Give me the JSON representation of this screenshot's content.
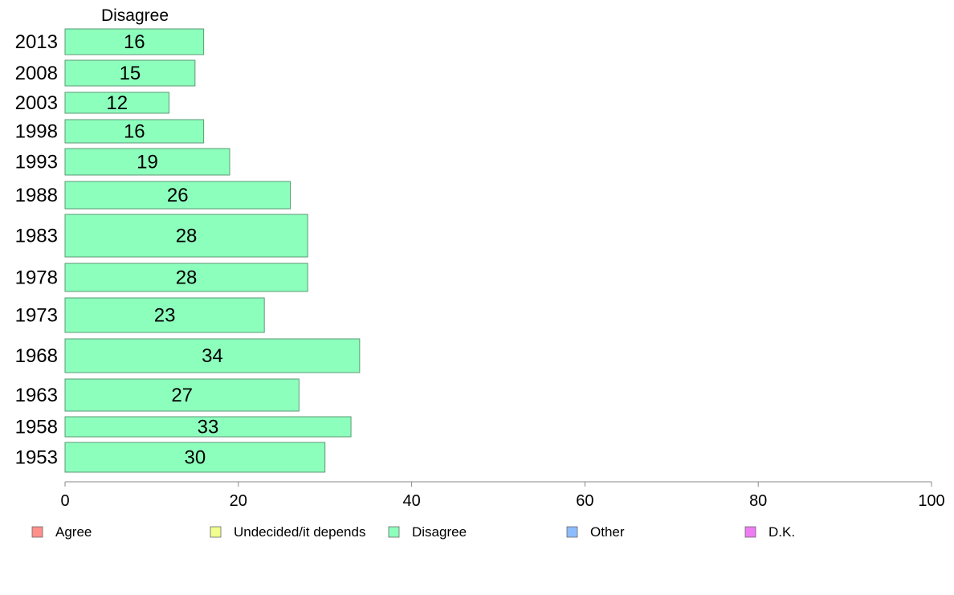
{
  "chart_data": {
    "type": "bar",
    "orientation": "horizontal",
    "title": "Disagree",
    "categories": [
      "2013",
      "2008",
      "2003",
      "1998",
      "1993",
      "1988",
      "1983",
      "1978",
      "1973",
      "1968",
      "1963",
      "1958",
      "1953"
    ],
    "series": [
      {
        "name": "Disagree",
        "values": [
          16,
          15,
          12,
          16,
          19,
          26,
          28,
          28,
          23,
          34,
          27,
          33,
          30
        ],
        "color": "#8dffbd"
      }
    ],
    "xlim": [
      0,
      100
    ],
    "x_ticks": [
      0,
      20,
      40,
      60,
      80,
      100
    ],
    "grid": false,
    "legend_position": "bottom",
    "legend": [
      {
        "label": "Agree",
        "color": "#ff8f8a"
      },
      {
        "label": "Undecided/it depends",
        "color": "#f2ff8e"
      },
      {
        "label": "Disagree",
        "color": "#8dffbd"
      },
      {
        "label": "Other",
        "color": "#8dbdff"
      },
      {
        "label": "D.K.",
        "color": "#f07cf4"
      }
    ]
  }
}
